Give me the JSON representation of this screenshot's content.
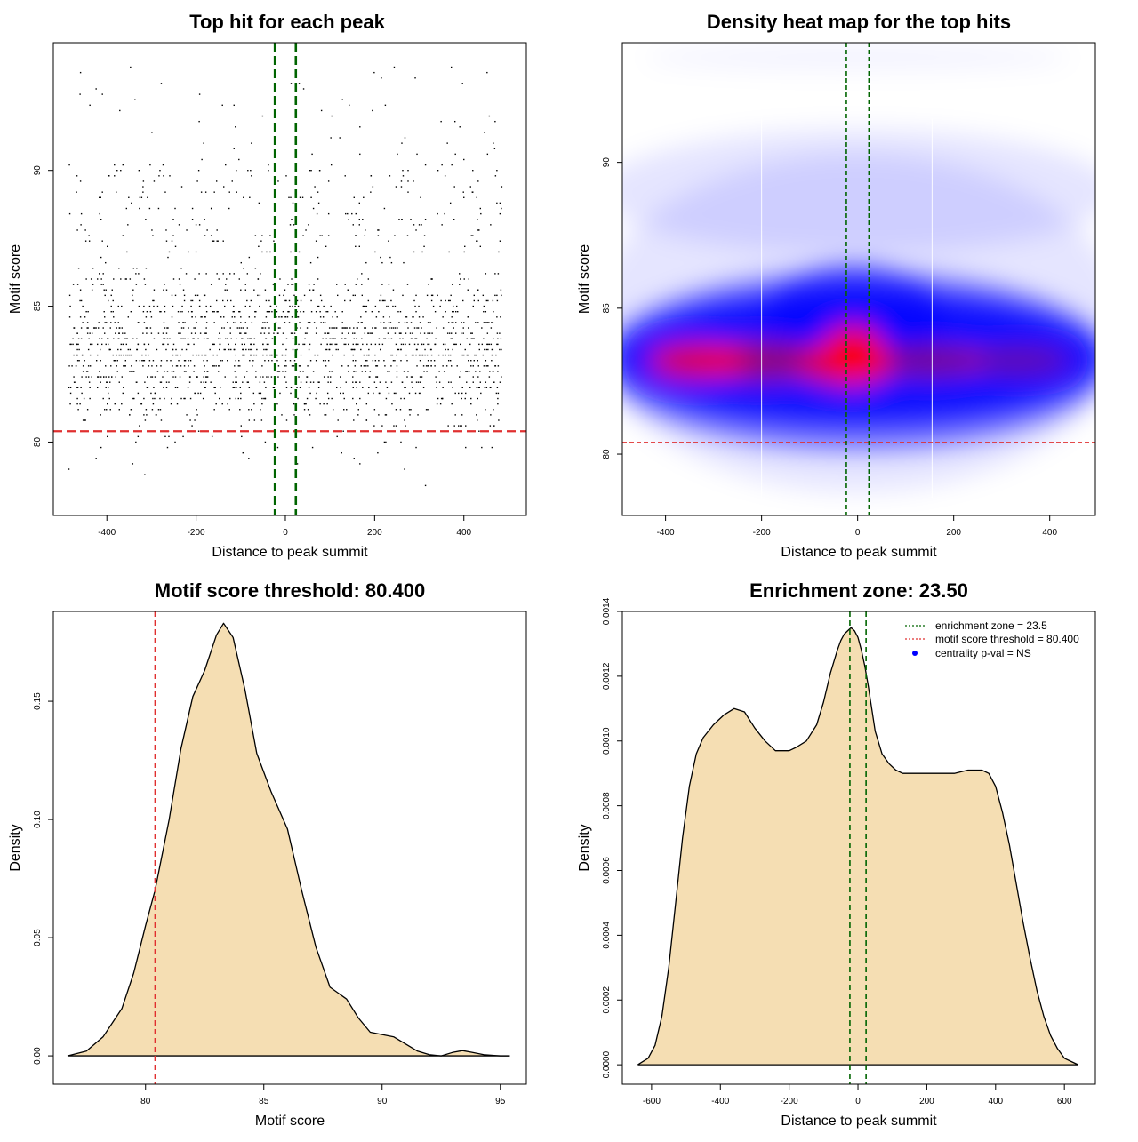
{
  "charts": [
    {
      "type": "scatter",
      "title": "Top hit for each peak",
      "xlabel": "Distance to peak summit",
      "ylabel": "Motif score",
      "xlim": [
        -520,
        540
      ],
      "ylim": [
        77.3,
        94.7
      ],
      "xticks": [
        -400,
        -200,
        0,
        200,
        400
      ],
      "yticks": [
        80,
        85,
        90
      ],
      "point_count": 2000,
      "point_color": "#000000",
      "enrichment_zone": [
        -23.5,
        23.5
      ],
      "enrichment_color": "#006400",
      "threshold": 80.4,
      "threshold_color": "#e03030"
    },
    {
      "type": "heatmap",
      "title": "Density heat map for the top hits",
      "xlabel": "Distance to peak summit",
      "ylabel": "Motif score",
      "xlim": [
        -490,
        495
      ],
      "ylim": [
        77.9,
        94.1
      ],
      "xticks": [
        -400,
        -200,
        0,
        200,
        400
      ],
      "yticks": [
        80,
        85,
        90
      ],
      "color_scale": [
        "#ffffff",
        "#0000ff",
        "#ff0000"
      ],
      "enrichment_zone": [
        -23.5,
        23.5
      ],
      "enrichment_color": "#006400",
      "threshold": 80.4,
      "threshold_color": "#e03030"
    },
    {
      "type": "area",
      "title": "Motif score threshold: 80.400",
      "xlabel": "Motif score",
      "ylabel": "Density",
      "xlim": [
        76.1,
        96.1
      ],
      "ylim": [
        -0.012,
        0.188
      ],
      "xticks": [
        80,
        85,
        90,
        95
      ],
      "yticks": [
        0.0,
        0.05,
        0.1,
        0.15
      ],
      "ytick_labels": [
        "0.00",
        "0.05",
        "0.10",
        "0.15"
      ],
      "fill_color": "#f5deb3",
      "x": [
        76.7,
        77.5,
        78.2,
        79.0,
        79.5,
        80.0,
        80.4,
        81.0,
        81.5,
        82.0,
        82.5,
        83.0,
        83.3,
        83.7,
        84.2,
        84.7,
        85.3,
        86.0,
        86.6,
        87.2,
        87.8,
        88.5,
        89.0,
        89.5,
        90.0,
        90.5,
        91.0,
        91.5,
        92.0,
        92.5,
        93.0,
        93.4,
        93.8,
        94.3,
        95.0,
        95.4
      ],
      "y": [
        0.0,
        0.002,
        0.008,
        0.02,
        0.035,
        0.055,
        0.07,
        0.1,
        0.13,
        0.152,
        0.163,
        0.178,
        0.183,
        0.177,
        0.155,
        0.128,
        0.112,
        0.096,
        0.07,
        0.046,
        0.029,
        0.024,
        0.016,
        0.01,
        0.009,
        0.008,
        0.005,
        0.002,
        0.0005,
        0.0,
        0.0015,
        0.0022,
        0.0015,
        0.0005,
        0.0,
        0.0
      ],
      "threshold": 80.4,
      "threshold_color": "#e03030"
    },
    {
      "type": "area",
      "title": "Enrichment zone: 23.50",
      "xlabel": "Distance to peak summit",
      "ylabel": "Density",
      "xlim": [
        -685,
        690
      ],
      "ylim": [
        -6e-05,
        0.0014
      ],
      "xticks": [
        -600,
        -400,
        -200,
        0,
        200,
        400,
        600
      ],
      "yticks": [
        0.0,
        0.0002,
        0.0004,
        0.0006,
        0.0008,
        0.001,
        0.0012,
        0.0014
      ],
      "ytick_labels": [
        "0.0000",
        "0.0002",
        "0.0004",
        "0.0006",
        "0.0008",
        "0.0010",
        "0.0012",
        "0.0014"
      ],
      "fill_color": "#f5deb3",
      "x": [
        -640,
        -610,
        -590,
        -570,
        -550,
        -530,
        -510,
        -490,
        -470,
        -450,
        -420,
        -390,
        -360,
        -330,
        -300,
        -270,
        -240,
        -220,
        -200,
        -180,
        -150,
        -120,
        -100,
        -80,
        -60,
        -50,
        -40,
        -30,
        -20,
        -10,
        0,
        10,
        20,
        30,
        40,
        50,
        70,
        90,
        110,
        130,
        150,
        180,
        210,
        240,
        280,
        320,
        360,
        380,
        400,
        420,
        440,
        460,
        480,
        500,
        520,
        540,
        560,
        580,
        600,
        620,
        640
      ],
      "y": [
        0.0,
        2e-05,
        6e-05,
        0.00015,
        0.0003,
        0.0005,
        0.0007,
        0.00086,
        0.00096,
        0.00101,
        0.00105,
        0.00108,
        0.0011,
        0.00109,
        0.00104,
        0.001,
        0.00097,
        0.00097,
        0.00097,
        0.00098,
        0.001,
        0.00105,
        0.00112,
        0.00121,
        0.00128,
        0.00131,
        0.00133,
        0.00134,
        0.00135,
        0.00134,
        0.00132,
        0.00128,
        0.00123,
        0.00117,
        0.0011,
        0.00103,
        0.00096,
        0.00093,
        0.00091,
        0.0009,
        0.0009,
        0.0009,
        0.0009,
        0.0009,
        0.0009,
        0.00091,
        0.00091,
        0.0009,
        0.00086,
        0.00078,
        0.00068,
        0.00056,
        0.00044,
        0.00033,
        0.00023,
        0.00015,
        9e-05,
        5e-05,
        2e-05,
        1e-05,
        0.0
      ],
      "enrichment_zone": [
        -23.5,
        23.5
      ],
      "enrichment_color": "#006400",
      "legend_position": "top-right",
      "legend": [
        {
          "label": "enrichment zone = 23.5",
          "color": "#006400",
          "style": "dotted-line"
        },
        {
          "label": "motif score threshold = 80.400",
          "color": "#e03030",
          "style": "dotted-line"
        },
        {
          "label": "centrality p-val = NS",
          "color": "#0000ff",
          "style": "point"
        }
      ]
    }
  ]
}
